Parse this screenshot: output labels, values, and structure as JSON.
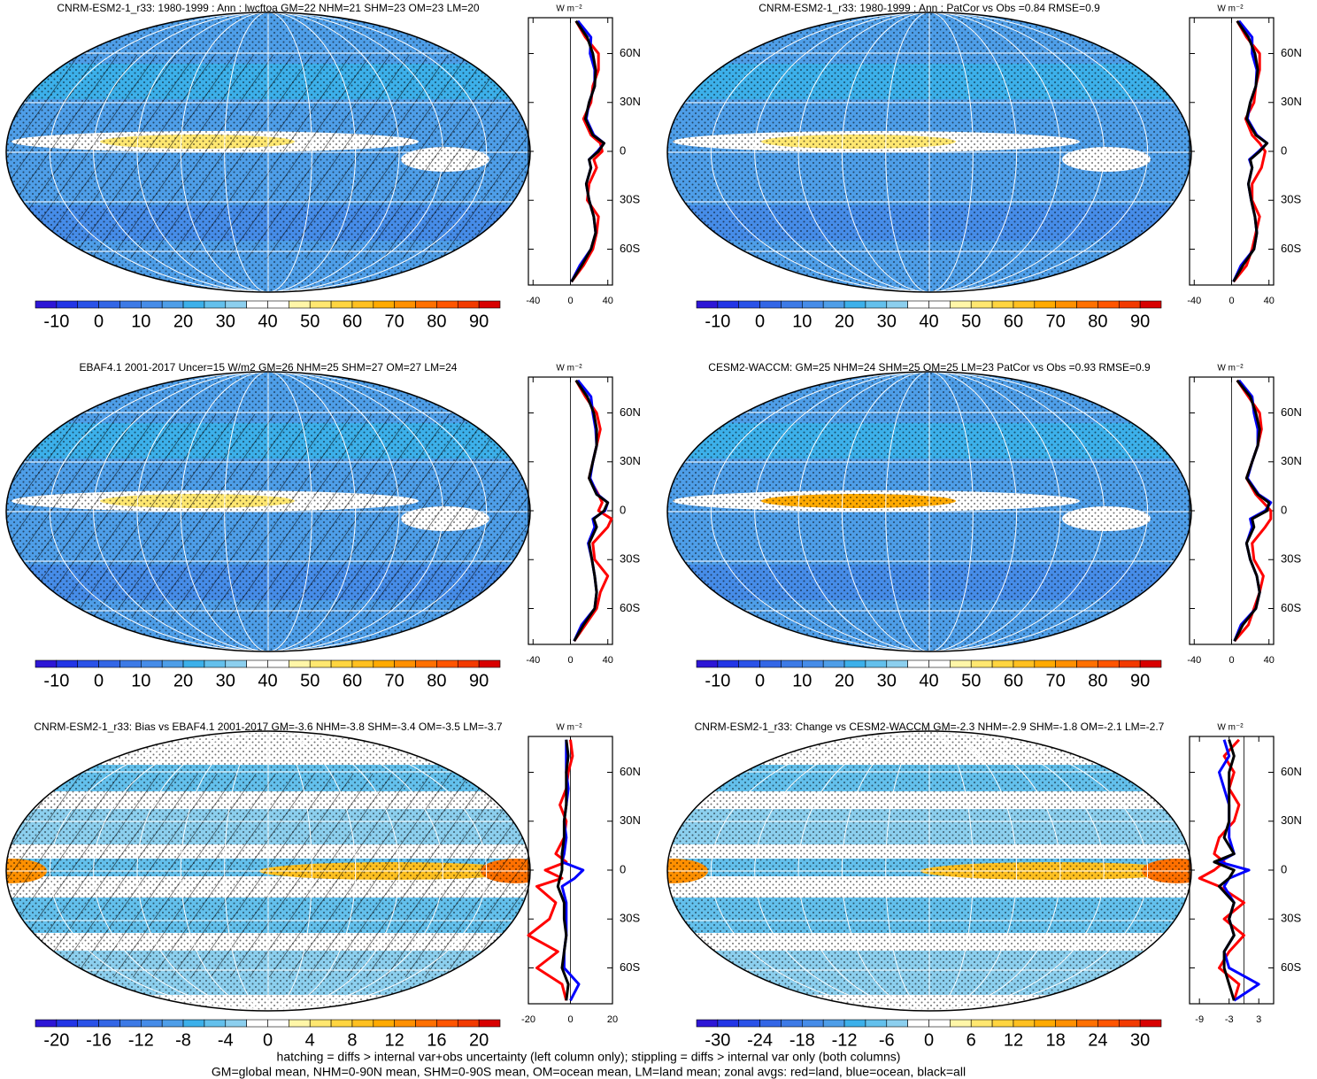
{
  "colorbar_colors": [
    "#2d16d6",
    "#2235e6",
    "#2a52e8",
    "#3366e6",
    "#3d7ae6",
    "#468ce8",
    "#4e9ee8",
    "#3cb0ea",
    "#63c0ec",
    "#8ccfee",
    "#ffffff",
    "#ffffff",
    "#fff6a8",
    "#ffe770",
    "#ffd540",
    "#ffc020",
    "#ffaa00",
    "#ff9000",
    "#ff7000",
    "#ff5500",
    "#f23a00",
    "#d80000"
  ],
  "panels": [
    {
      "title": "CNRM-ESM2-1_r33: 1980-1999 : Ann : lwcftoa GM=22 NHM=21 SHM=23 OM=23 LM=20",
      "colorbar_labels": [
        -10,
        0,
        10,
        20,
        30,
        40,
        50,
        60,
        70,
        80,
        90
      ],
      "zonal": {
        "type": "line",
        "units": "W m⁻²",
        "xlim": [
          -45,
          45
        ],
        "xticks": [
          -40,
          0,
          40
        ],
        "ylim": [
          -82,
          82
        ],
        "yticks": [
          {
            "value": 60,
            "label": "60N"
          },
          {
            "value": 30,
            "label": "30N"
          },
          0,
          {
            "value": -30,
            "label": "30S"
          },
          {
            "value": -60,
            "label": "60S"
          }
        ],
        "lat": [
          -80,
          -70,
          -60,
          -50,
          -40,
          -30,
          -20,
          -10,
          -5,
          0,
          5,
          10,
          20,
          30,
          40,
          50,
          60,
          70,
          80
        ],
        "series": [
          {
            "color": "#ff0000",
            "values": [
              1,
              14,
              24,
              28,
              30,
              18,
              20,
              28,
              25,
              34,
              32,
              22,
              14,
              22,
              24,
              30,
              30,
              16,
              6
            ]
          },
          {
            "color": "#0000ff",
            "values": [
              1,
              10,
              22,
              27,
              25,
              20,
              17,
              22,
              20,
              29,
              36,
              25,
              17,
              20,
              26,
              26,
              21,
              22,
              8
            ]
          },
          {
            "color": "#000000",
            "values": [
              1,
              12,
              22,
              27,
              25,
              20,
              17,
              22,
              20,
              30,
              36,
              24,
              16,
              20,
              26,
              27,
              24,
              18,
              6
            ]
          }
        ]
      }
    },
    {
      "title": "CNRM-ESM2-1_r33: 1980-1999 : Ann : PatCor vs Obs =0.84 RMSE=0.9",
      "colorbar_labels": [
        -10,
        0,
        10,
        20,
        30,
        40,
        50,
        60,
        70,
        80,
        90
      ],
      "zonal": {
        "type": "line",
        "units": "W m⁻²",
        "xlim": [
          -45,
          45
        ],
        "xticks": [
          -40,
          0,
          40
        ],
        "ylim": [
          -82,
          82
        ],
        "yticks": [
          {
            "value": 60,
            "label": "60N"
          },
          {
            "value": 30,
            "label": "30N"
          },
          0,
          {
            "value": -30,
            "label": "30S"
          },
          {
            "value": -60,
            "label": "60S"
          }
        ],
        "lat": [
          -80,
          -70,
          -60,
          -50,
          -40,
          -30,
          -20,
          -10,
          -5,
          0,
          5,
          10,
          20,
          30,
          40,
          50,
          60,
          70,
          80
        ],
        "series": [
          {
            "color": "#ff0000",
            "values": [
              2,
              16,
              22,
              26,
              30,
              22,
              22,
              32,
              34,
              36,
              30,
              22,
              15,
              24,
              26,
              30,
              30,
              16,
              6
            ]
          },
          {
            "color": "#0000ff",
            "values": [
              2,
              10,
              24,
              27,
              25,
              21,
              18,
              22,
              19,
              29,
              38,
              27,
              17,
              20,
              26,
              27,
              22,
              22,
              8
            ]
          },
          {
            "color": "#000000",
            "values": [
              2,
              12,
              24,
              27,
              25,
              21,
              18,
              22,
              20,
              30,
              38,
              26,
              16,
              20,
              26,
              28,
              25,
              18,
              6
            ]
          }
        ]
      }
    },
    {
      "title": "EBAF4.1 2001-2017 Uncer=15 W/m2 GM=26 NHM=25 SHM=27 OM=27 LM=24",
      "colorbar_labels": [
        -10,
        0,
        10,
        20,
        30,
        40,
        50,
        60,
        70,
        80,
        90
      ],
      "zonal": {
        "type": "line",
        "units": "W m⁻²",
        "xlim": [
          -45,
          45
        ],
        "xticks": [
          -40,
          0,
          40
        ],
        "ylim": [
          -82,
          82
        ],
        "yticks": [
          {
            "value": 60,
            "label": "60N"
          },
          {
            "value": 30,
            "label": "30N"
          },
          0,
          {
            "value": -30,
            "label": "30S"
          },
          {
            "value": -60,
            "label": "60S"
          }
        ],
        "lat": [
          -80,
          -70,
          -60,
          -50,
          -40,
          -30,
          -20,
          -10,
          -5,
          0,
          5,
          10,
          20,
          30,
          40,
          50,
          60,
          70,
          80
        ],
        "series": [
          {
            "color": "#ff0000",
            "values": [
              4,
              16,
              28,
              32,
              40,
              26,
              24,
              40,
              44,
              30,
              34,
              30,
              20,
              24,
              28,
              32,
              28,
              16,
              6
            ]
          },
          {
            "color": "#0000ff",
            "values": [
              4,
              12,
              26,
              28,
              26,
              23,
              19,
              26,
              24,
              37,
              40,
              29,
              21,
              24,
              28,
              27,
              24,
              22,
              8
            ]
          },
          {
            "color": "#000000",
            "values": [
              4,
              14,
              26,
              28,
              26,
              23,
              20,
              28,
              25,
              36,
              40,
              28,
              20,
              24,
              28,
              28,
              25,
              18,
              6
            ]
          }
        ]
      }
    },
    {
      "title": "CESM2-WACCM: GM=25 NHM=24 SHM=25 OM=25 LM=23 PatCor vs Obs =0.93 RMSE=0.9",
      "colorbar_labels": [
        -10,
        0,
        10,
        20,
        30,
        40,
        50,
        60,
        70,
        80,
        90
      ],
      "zonal": {
        "type": "line",
        "units": "W m⁻²",
        "xlim": [
          -45,
          45
        ],
        "xticks": [
          -40,
          0,
          40
        ],
        "ylim": [
          -82,
          82
        ],
        "yticks": [
          {
            "value": 60,
            "label": "60N"
          },
          {
            "value": 30,
            "label": "30N"
          },
          0,
          {
            "value": -30,
            "label": "30S"
          },
          {
            "value": -60,
            "label": "60S"
          }
        ],
        "lat": [
          -80,
          -70,
          -60,
          -50,
          -40,
          -30,
          -20,
          -10,
          -5,
          0,
          5,
          10,
          20,
          30,
          40,
          50,
          60,
          70,
          80
        ],
        "series": [
          {
            "color": "#ff0000",
            "values": [
              3,
              18,
              24,
              30,
              34,
              24,
              22,
              36,
              42,
              42,
              34,
              26,
              16,
              22,
              28,
              32,
              30,
              18,
              6
            ]
          },
          {
            "color": "#0000ff",
            "values": [
              3,
              10,
              26,
              30,
              27,
              20,
              16,
              22,
              20,
              36,
              42,
              29,
              17,
              22,
              28,
              28,
              24,
              22,
              8
            ]
          },
          {
            "color": "#000000",
            "values": [
              3,
              12,
              26,
              30,
              27,
              20,
              16,
              24,
              22,
              38,
              40,
              28,
              16,
              22,
              28,
              30,
              26,
              20,
              6
            ]
          }
        ]
      }
    },
    {
      "title": "CNRM-ESM2-1_r33: Bias vs EBAF4.1 2001-2017 GM=-3.6 NHM=-3.8 SHM=-3.4 OM=-3.5 LM=-3.7",
      "colorbar_labels": [
        -20,
        -16,
        -12,
        -8,
        -4,
        0,
        4,
        8,
        12,
        16,
        20
      ],
      "zonal": {
        "type": "line",
        "units": "W m⁻²",
        "xlim": [
          -20,
          20
        ],
        "xticks": [
          -20,
          0,
          20
        ],
        "ylim": [
          -82,
          82
        ],
        "yticks": [
          {
            "value": 60,
            "label": "60N"
          },
          {
            "value": 30,
            "label": "30N"
          },
          0,
          {
            "value": -30,
            "label": "30S"
          },
          {
            "value": -60,
            "label": "60S"
          }
        ],
        "lat": [
          -80,
          -70,
          -60,
          -50,
          -40,
          -30,
          -20,
          -10,
          -5,
          0,
          5,
          10,
          20,
          30,
          40,
          50,
          60,
          70,
          80
        ],
        "series": [
          {
            "color": "#ff0000",
            "values": [
              -2,
              -4,
              -16,
              -6,
              -20,
              -10,
              -7,
              -16,
              -4,
              -12,
              -2,
              -7,
              -3,
              -2,
              -5,
              -2,
              -1,
              1,
              0
            ]
          },
          {
            "color": "#0000ff",
            "values": [
              0,
              4,
              -3,
              -3,
              -2,
              -2,
              -2,
              -4,
              2,
              6,
              -4,
              -3,
              -2,
              -3,
              -2,
              -1,
              -2,
              -2,
              -2
            ]
          },
          {
            "color": "#000000",
            "values": [
              -2,
              -1,
              -4,
              -3,
              -2,
              -3,
              -3,
              -6,
              -5,
              -4,
              -4,
              -4,
              -3,
              -3,
              -2,
              -2,
              -2,
              -1,
              -2
            ]
          }
        ]
      }
    },
    {
      "title": "CNRM-ESM2-1_r33: Change vs CESM2-WACCM GM=-2.3 NHM=-2.9 SHM=-1.8 OM=-2.1 LM=-2.7",
      "colorbar_labels": [
        -30,
        -24,
        -18,
        -12,
        -6,
        0,
        6,
        12,
        18,
        24,
        30
      ],
      "zonal": {
        "type": "line",
        "units": "W m⁻²",
        "xlim": [
          -11,
          6
        ],
        "xticks": [
          -9,
          -3,
          3
        ],
        "ylim": [
          -82,
          82
        ],
        "yticks": [
          {
            "value": 60,
            "label": "60N"
          },
          {
            "value": 30,
            "label": "30N"
          },
          0,
          {
            "value": -30,
            "label": "30S"
          },
          {
            "value": -60,
            "label": "60S"
          }
        ],
        "lat": [
          -80,
          -70,
          -60,
          -50,
          -40,
          -30,
          -20,
          -10,
          -5,
          0,
          5,
          10,
          20,
          30,
          40,
          50,
          60,
          70,
          80
        ],
        "series": [
          {
            "color": "#ff0000",
            "values": [
              -2,
              -1,
              -5,
              -3,
              0,
              -4,
              0,
              -5,
              -9,
              -6,
              -4,
              -6,
              -5,
              -2,
              -1,
              -3,
              -2,
              -4,
              -1
            ]
          },
          {
            "color": "#0000ff",
            "values": [
              -2,
              3,
              -3,
              -4,
              -2,
              -3,
              -2,
              -4,
              -3,
              1,
              -5,
              -2,
              -3,
              -3,
              -3,
              -4,
              -5,
              -3,
              -4
            ]
          },
          {
            "color": "#000000",
            "values": [
              -2,
              -3,
              -4,
              -4,
              -2,
              -3,
              -2,
              -5,
              -3,
              -2,
              -6,
              -2,
              -4,
              -3,
              -3,
              -3,
              -3,
              -2,
              -3
            ]
          }
        ]
      }
    }
  ],
  "footer": [
    "hatching = diffs > internal var+obs uncertainty (left column only); stippling = diffs > internal var only (both columns)",
    "GM=global mean, NHM=0-90N mean, SHM=0-90S mean, OM=ocean mean, LM=land mean; zonal avgs: red=land, blue=ocean, black=all"
  ]
}
